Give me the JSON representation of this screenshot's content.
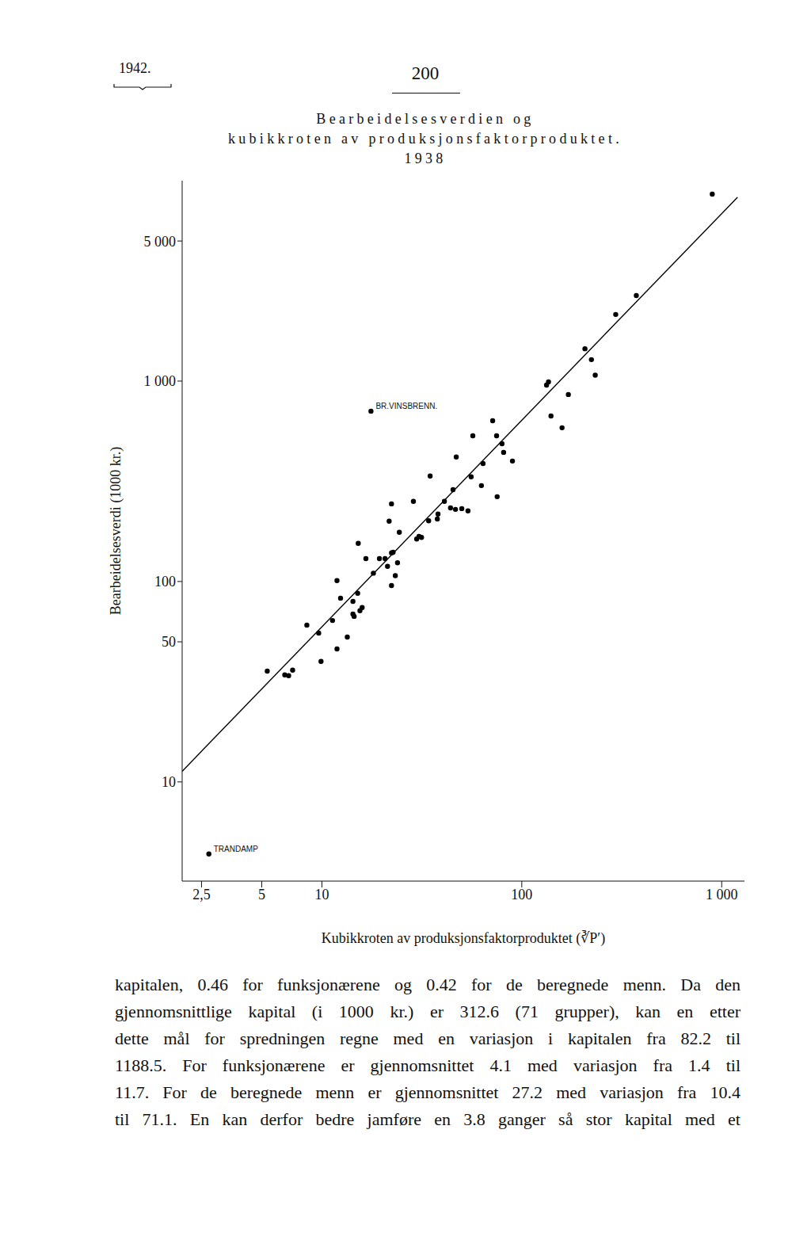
{
  "page": {
    "header_left": "1942.",
    "page_number": "200"
  },
  "chart_data": {
    "type": "scatter",
    "title": [
      "Bearbeidelsesverdien og",
      "kubikkroten av produksjonsfaktorproduktet."
    ],
    "subtitle": "1938",
    "x_label": "Kubikkroten av produksjonsfaktorproduktet (∛P′)",
    "y_label": "Bearbeidelsesverdi (1000 kr.)",
    "log": true,
    "marker": "circle",
    "color": "#000000",
    "xlim": [
      2,
      1300
    ],
    "ylim": [
      3.2,
      10000
    ],
    "xticks": [
      {
        "value": 2.5,
        "label": "2,5"
      },
      5,
      10,
      100,
      {
        "value": 1000,
        "label": "1 000"
      }
    ],
    "yticks": [
      10,
      50,
      100,
      {
        "value": 1000,
        "label": "1 000"
      },
      {
        "value": 5000,
        "label": "5 000"
      }
    ],
    "x": [
      897,
      374,
      295,
      207,
      223,
      233,
      136,
      133,
      171,
      140,
      159,
      17.6,
      71.5,
      56.9,
      74.8,
      79.6,
      81.1,
      47.0,
      89.8,
      64.0,
      34.8,
      55.8,
      45.3,
      62.8,
      75.3,
      41.0,
      22.3,
      28.7,
      44.0,
      46.6,
      50.1,
      53.8,
      38.1,
      37.8,
      34.2,
      21.7,
      24.4,
      30.6,
      29.8,
      31.5,
      15.2,
      22.3,
      22.7,
      16.6,
      19.4,
      20.7,
      23.9,
      21.3,
      18.1,
      23.3,
      11.9,
      22.3,
      12.4,
      15.1,
      14.3,
      15.9,
      15.5,
      14.3,
      14.5,
      8.41,
      11.3,
      9.64,
      13.4,
      11.9,
      9.9,
      5.33,
      7.14,
      6.52,
      6.82,
      2.72
    ],
    "y": [
      8570,
      2670,
      2150,
      1450,
      1280,
      1070,
      990,
      955,
      857,
      670,
      585,
      708,
      634,
      533,
      533,
      487,
      441,
      418,
      399,
      388,
      336,
      333,
      287,
      301,
      265,
      251,
      244,
      251,
      233,
      229,
      231,
      225,
      217,
      205,
      201,
      200,
      176,
      168,
      163,
      166,
      155,
      139,
      140,
      130,
      130,
      130,
      124,
      119,
      110,
      107,
      101,
      95.5,
      82.6,
      87.3,
      79.6,
      74.1,
      71.5,
      68.8,
      67.0,
      60.6,
      63.9,
      55.3,
      52.8,
      46.1,
      39.9,
      35.7,
      36.1,
      34.2,
      33.9,
      4.37
    ],
    "fit_line": {
      "x": [
        2,
        1200
      ],
      "y": [
        11.3,
        8260
      ]
    },
    "annotations": [
      {
        "text": "BR.VINSBRENN.",
        "x": 17.6,
        "y": 708
      },
      {
        "text": "TRANDAMP",
        "x": 2.72,
        "y": 4.37
      }
    ]
  },
  "body_text": [
    "kapitalen, 0.46 for funksjonærene og 0.42 for de beregnede menn. Da den",
    "gjennomsnittlige kapital (i 1000 kr.) er 312.6 (71 grupper), kan en etter",
    "dette mål for spredningen regne med en variasjon i kapitalen fra 82.2 til",
    "1188.5. For funksjonærene er gjennomsnittet 4.1 med variasjon fra 1.4 til",
    "11.7. For de beregnede menn er gjennomsnittet 27.2 med variasjon fra 10.4",
    "til 71.1. En kan derfor bedre jamføre en 3.8 ganger så stor kapital med et"
  ]
}
